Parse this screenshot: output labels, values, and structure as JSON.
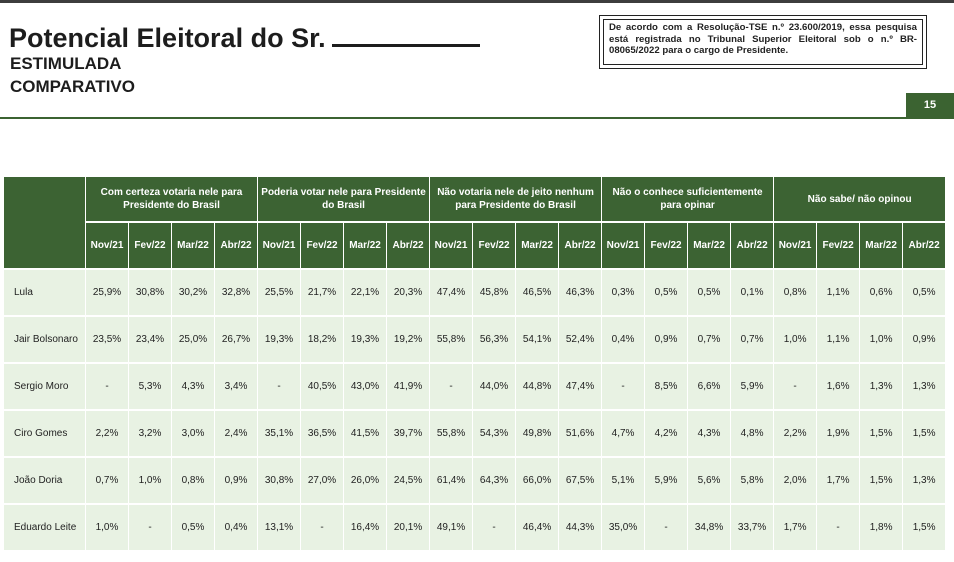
{
  "header": {
    "title": "Potencial Eleitoral do Sr.",
    "subtitle1": "ESTIMULADA",
    "subtitle2": "COMPARATIVO",
    "notice": "De acordo com a Resolução-TSE n.º 23.600/2019, essa pesquisa está registrada no Tribunal Superior Eleitoral sob o n.º BR-08065/2022 para o cargo de Presidente.",
    "page_number": "15"
  },
  "table": {
    "groups": [
      {
        "label": "Com certeza votaria nele para Presidente do Brasil"
      },
      {
        "label": "Poderia votar nele para Presidente do Brasil"
      },
      {
        "label": "Não votaria nele de jeito nenhum para Presidente do Brasil"
      },
      {
        "label": "Não o conhece suficientemente para opinar"
      },
      {
        "label": "Não sabe/ não opinou"
      }
    ],
    "months": [
      "Nov/21",
      "Fev/22",
      "Mar/22",
      "Abr/22"
    ],
    "rows": [
      {
        "name": "Lula",
        "values": [
          "25,9%",
          "30,8%",
          "30,2%",
          "32,8%",
          "25,5%",
          "21,7%",
          "22,1%",
          "20,3%",
          "47,4%",
          "45,8%",
          "46,5%",
          "46,3%",
          "0,3%",
          "0,5%",
          "0,5%",
          "0,1%",
          "0,8%",
          "1,1%",
          "0,6%",
          "0,5%"
        ]
      },
      {
        "name": "Jair Bolsonaro",
        "values": [
          "23,5%",
          "23,4%",
          "25,0%",
          "26,7%",
          "19,3%",
          "18,2%",
          "19,3%",
          "19,2%",
          "55,8%",
          "56,3%",
          "54,1%",
          "52,4%",
          "0,4%",
          "0,9%",
          "0,7%",
          "0,7%",
          "1,0%",
          "1,1%",
          "1,0%",
          "0,9%"
        ]
      },
      {
        "name": "Sergio Moro",
        "values": [
          "-",
          "5,3%",
          "4,3%",
          "3,4%",
          "-",
          "40,5%",
          "43,0%",
          "41,9%",
          "-",
          "44,0%",
          "44,8%",
          "47,4%",
          "-",
          "8,5%",
          "6,6%",
          "5,9%",
          "-",
          "1,6%",
          "1,3%",
          "1,3%"
        ]
      },
      {
        "name": "Ciro Gomes",
        "values": [
          "2,2%",
          "3,2%",
          "3,0%",
          "2,4%",
          "35,1%",
          "36,5%",
          "41,5%",
          "39,7%",
          "55,8%",
          "54,3%",
          "49,8%",
          "51,6%",
          "4,7%",
          "4,2%",
          "4,3%",
          "4,8%",
          "2,2%",
          "1,9%",
          "1,5%",
          "1,5%"
        ]
      },
      {
        "name": "João Doria",
        "values": [
          "0,7%",
          "1,0%",
          "0,8%",
          "0,9%",
          "30,8%",
          "27,0%",
          "26,0%",
          "24,5%",
          "61,4%",
          "64,3%",
          "66,0%",
          "67,5%",
          "5,1%",
          "5,9%",
          "5,6%",
          "5,8%",
          "2,0%",
          "1,7%",
          "1,5%",
          "1,3%"
        ]
      },
      {
        "name": "Eduardo Leite",
        "values": [
          "1,0%",
          "-",
          "0,5%",
          "0,4%",
          "13,1%",
          "-",
          "16,4%",
          "20,1%",
          "49,1%",
          "-",
          "46,4%",
          "44,3%",
          "35,0%",
          "-",
          "34,8%",
          "33,7%",
          "1,7%",
          "-",
          "1,8%",
          "1,5%"
        ]
      }
    ]
  }
}
